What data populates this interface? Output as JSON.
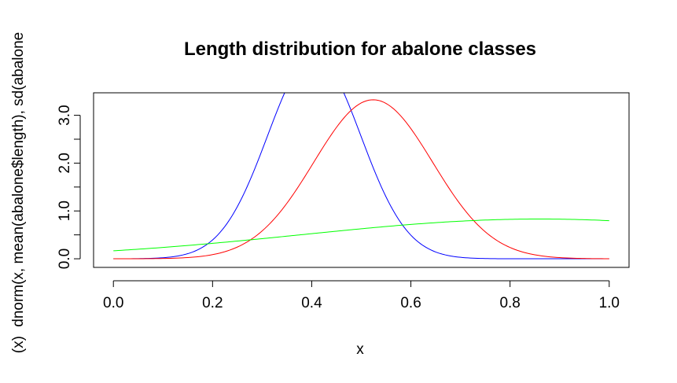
{
  "chart_data": {
    "type": "line",
    "title": "Length distribution for abalone classes",
    "xlabel": "x",
    "ylabel": "dnorm(x, mean(abalone$length), sd(abalone",
    "ylabel_prefix": "(x)",
    "xlim": [
      -0.04,
      1.04
    ],
    "ylim": [
      -0.18,
      3.47
    ],
    "x_ticks": [
      0.0,
      0.2,
      0.4,
      0.6,
      0.8,
      1.0
    ],
    "x_tick_labels": [
      "0.0",
      "0.2",
      "0.4",
      "0.6",
      "0.8",
      "1.0"
    ],
    "y_ticks": [
      0.0,
      0.5,
      1.0,
      1.5,
      2.0,
      2.5,
      3.0
    ],
    "y_tick_labels": [
      "0.0",
      "",
      "1.0",
      "",
      "2.0",
      "",
      "3.0"
    ],
    "grid": false,
    "legend": "none",
    "series": [
      {
        "color": "#0000ff",
        "mean": 0.405,
        "sd": 0.094
      },
      {
        "color": "#ff0000",
        "mean": 0.524,
        "sd": 0.12
      },
      {
        "color": "#00ff00",
        "mean": 0.86,
        "sd": 0.48
      }
    ]
  }
}
